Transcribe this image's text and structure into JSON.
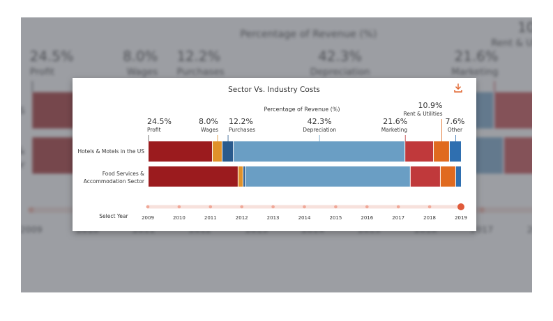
{
  "chart_data": {
    "type": "stacked_bar",
    "orientation": "horizontal",
    "title": "Sector Vs. Industry Costs",
    "x_label": "Percentage of Revenue (%)",
    "xlim": [
      0,
      100
    ],
    "categories": [
      "Hotels & Motels in the US",
      "Food Services & Accommodation Sector"
    ],
    "series": [
      {
        "name": "Profit",
        "headline": "24.5%",
        "color": "#9b1b1e",
        "values": [
          20.5,
          28.7
        ]
      },
      {
        "name": "Wages",
        "headline": "8.0%",
        "color": "#e0912a",
        "values": [
          3.1,
          1.6
        ]
      },
      {
        "name": "Purchases",
        "headline": "12.2%",
        "color": "#2a5a8c",
        "values": [
          3.6,
          0.7
        ]
      },
      {
        "name": "Depreciation",
        "headline": "42.3%",
        "color": "#6a9ec4",
        "values": [
          54.8,
          52.7
        ]
      },
      {
        "name": "Marketing",
        "headline": "21.6%",
        "color": "#c0393b",
        "values": [
          9.1,
          9.6
        ]
      },
      {
        "name": "Rent & Utilities",
        "headline": "10.9%",
        "color": "#e06a1f",
        "values": [
          5.1,
          4.9
        ]
      },
      {
        "name": "Other",
        "headline": "7.6%",
        "color": "#2f6fb0",
        "values": [
          3.8,
          1.8
        ]
      }
    ],
    "year_label": "Select Year",
    "years": [
      2009,
      2010,
      2011,
      2012,
      2013,
      2014,
      2015,
      2016,
      2017,
      2018,
      2019
    ],
    "selected_year": 2019
  }
}
